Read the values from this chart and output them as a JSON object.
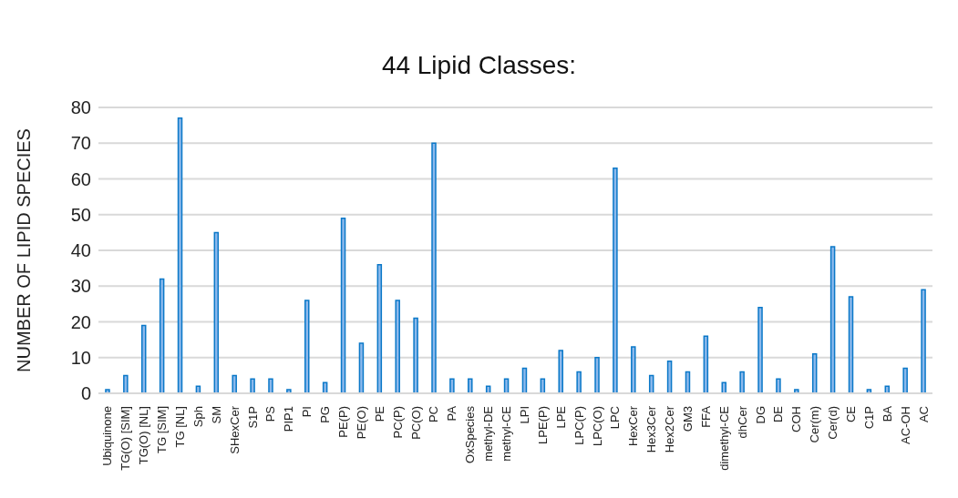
{
  "chart_data": {
    "type": "bar",
    "title": "44 Lipid Classes:",
    "ylabel": "NUMBER OF LIPID SPECIES",
    "categories": [
      "Ubiquinone",
      "TG(O) [SIM]",
      "TG(O) [NL]",
      "TG [SIM]",
      "TG [NL]",
      "Sph",
      "SM",
      "SHexCer",
      "S1P",
      "PS",
      "PIP1",
      "PI",
      "PG",
      "PE(P)",
      "PE(O)",
      "PE",
      "PC(P)",
      "PC(O)",
      "PC",
      "PA",
      "OxSpecies",
      "methyl-DE",
      "methyl-CE",
      "LPI",
      "LPE(P)",
      "LPE",
      "LPC(P)",
      "LPC(O)",
      "LPC",
      "HexCer",
      "Hex3Cer",
      "Hex2Cer",
      "GM3",
      "FFA",
      "dimethyl-CE",
      "dhCer",
      "DG",
      "DE",
      "COH",
      "Cer(m)",
      "Cer(d)",
      "CE",
      "C1P",
      "BA",
      "AC-OH",
      "AC"
    ],
    "values": [
      1,
      5,
      19,
      32,
      77,
      2,
      45,
      5,
      4,
      4,
      1,
      26,
      3,
      49,
      14,
      36,
      26,
      21,
      70,
      4,
      4,
      2,
      4,
      7,
      4,
      12,
      6,
      10,
      63,
      13,
      5,
      9,
      6,
      16,
      3,
      6,
      24,
      4,
      1,
      11,
      41,
      27,
      1,
      2,
      7,
      29
    ],
    "color": "#8cb9ec",
    "ylim": [
      0,
      80
    ],
    "yticks": [
      0,
      10,
      20,
      30,
      40,
      50,
      60,
      70,
      80
    ],
    "grid": "y",
    "legend": false
  }
}
